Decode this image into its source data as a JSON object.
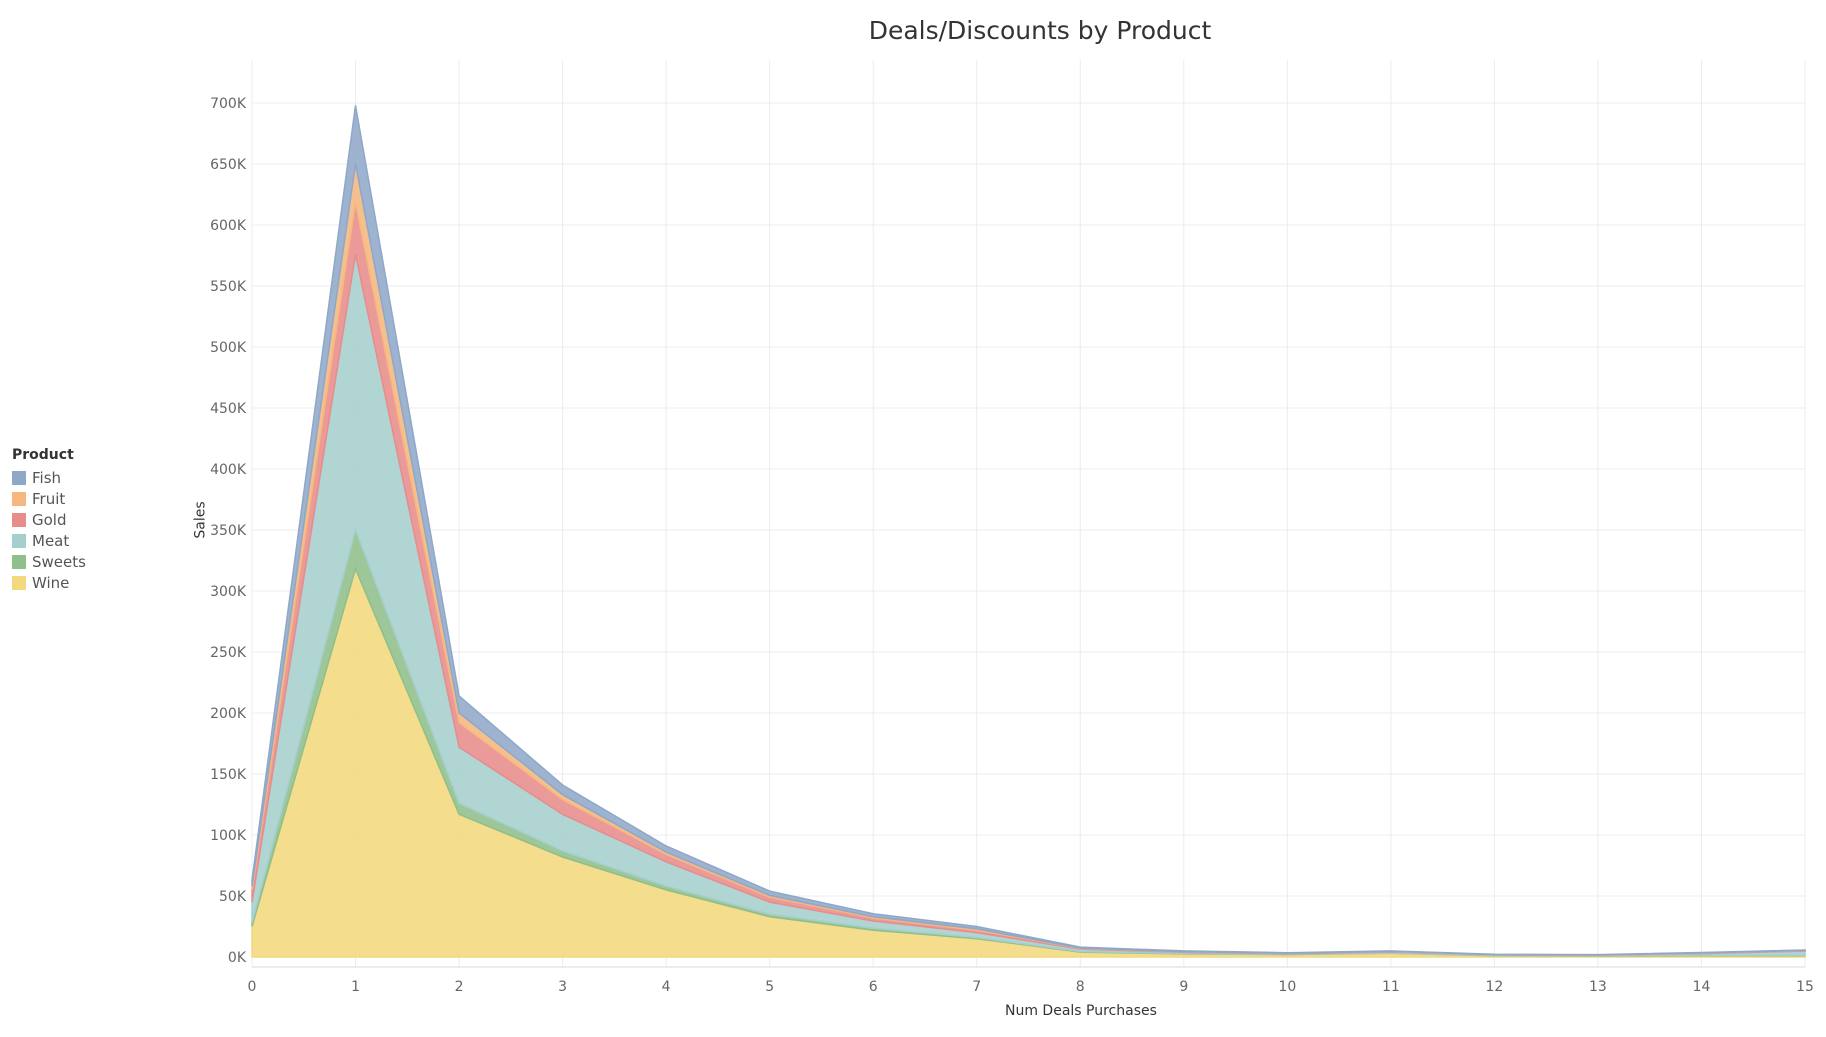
{
  "chart_data": {
    "type": "area",
    "title": "Deals/Discounts by Product",
    "xlabel": "Num Deals Purchases",
    "ylabel": "Sales",
    "legend_title": "Product",
    "legend_position": "left",
    "stacked": true,
    "grid": true,
    "x": [
      0,
      1,
      2,
      3,
      4,
      5,
      6,
      7,
      8,
      9,
      10,
      11,
      12,
      13,
      14,
      15
    ],
    "ylim": [
      0,
      700000
    ],
    "yticks": [
      0,
      50000,
      100000,
      150000,
      200000,
      250000,
      300000,
      350000,
      400000,
      450000,
      500000,
      550000,
      600000,
      650000,
      700000
    ],
    "ytick_labels": [
      "0K",
      "50K",
      "100K",
      "150K",
      "200K",
      "250K",
      "300K",
      "350K",
      "400K",
      "450K",
      "500K",
      "550K",
      "600K",
      "650K",
      "700K"
    ],
    "series": [
      {
        "name": "Wine",
        "color": "#F2D97E",
        "values": [
          25000,
          318000,
          117000,
          82000,
          55000,
          33000,
          22000,
          15000,
          4000,
          2500,
          2000,
          3000,
          1000,
          700,
          1000,
          1000
        ]
      },
      {
        "name": "Sweets",
        "color": "#8FBF8A",
        "values": [
          3000,
          32000,
          9000,
          5000,
          3000,
          2000,
          1500,
          1000,
          500,
          300,
          200,
          200,
          200,
          200,
          300,
          300
        ]
      },
      {
        "name": "Meat",
        "color": "#A5CFCD",
        "values": [
          17000,
          226000,
          46000,
          30000,
          20000,
          10000,
          6000,
          4000,
          2000,
          1000,
          500,
          800,
          500,
          500,
          1500,
          3500
        ]
      },
      {
        "name": "Gold",
        "color": "#E88C8C",
        "values": [
          10000,
          42000,
          20000,
          12000,
          6000,
          4000,
          2500,
          2000,
          500,
          300,
          300,
          300,
          200,
          200,
          300,
          300
        ]
      },
      {
        "name": "Fruit",
        "color": "#F5B77E",
        "values": [
          3000,
          32000,
          8000,
          4000,
          2000,
          1500,
          1000,
          1000,
          300,
          200,
          100,
          200,
          100,
          100,
          200,
          200
        ]
      },
      {
        "name": "Fish",
        "color": "#8FA8C8",
        "values": [
          5000,
          48000,
          14000,
          8000,
          5000,
          3500,
          2500,
          2000,
          800,
          700,
          400,
          500,
          300,
          300,
          400,
          400
        ]
      }
    ],
    "legend_order": [
      "Fish",
      "Fruit",
      "Gold",
      "Meat",
      "Sweets",
      "Wine"
    ]
  }
}
